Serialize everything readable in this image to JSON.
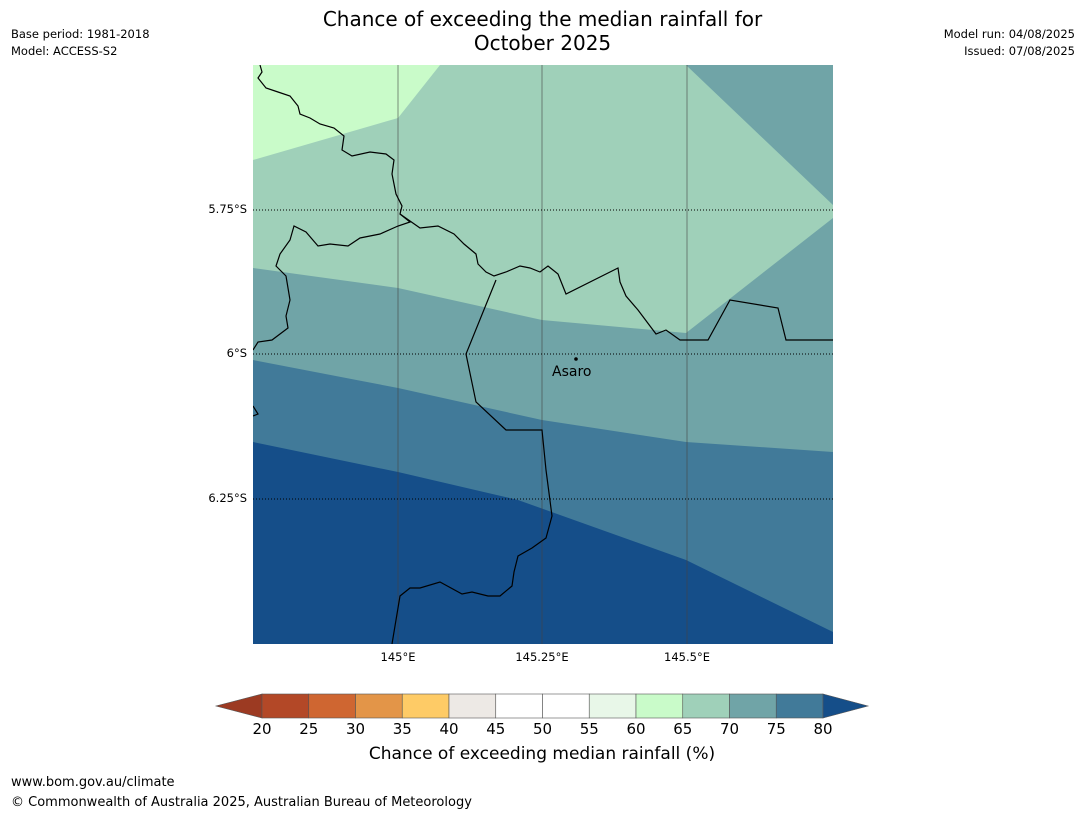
{
  "title": {
    "line1": "Chance of exceeding the median rainfall for",
    "line2": "October 2025"
  },
  "meta_left": {
    "base_period": "Base period: 1981-2018",
    "model": "Model: ACCESS-S2"
  },
  "meta_right": {
    "model_run": "Model run: 04/08/2025",
    "issued": "Issued: 07/08/2025"
  },
  "map": {
    "latitude_labels": [
      "5.75°S",
      "6°S",
      "6.25°S"
    ],
    "longitude_labels": [
      "145°E",
      "145.25°E",
      "145.5°E"
    ],
    "place": {
      "name": "Asaro"
    },
    "colors": {
      "c60_65": "#c9fbc9",
      "c65_70": "#9fd0b9",
      "c70_75": "#70a4a7",
      "c75_80": "#417a99",
      "c80_plus": "#154e89"
    }
  },
  "colorbar": {
    "ticks": [
      "20",
      "25",
      "30",
      "35",
      "40",
      "45",
      "50",
      "55",
      "60",
      "65",
      "70",
      "75",
      "80"
    ],
    "colors": [
      "#b34827",
      "#cf6631",
      "#e39548",
      "#fecb66",
      "#ede9e5",
      "#ffffff",
      "#ffffff",
      "#e8f7e8",
      "#c9fbc9",
      "#9fd0b9",
      "#70a4a7",
      "#417a99"
    ],
    "under_color": "#9c3a22",
    "over_color": "#154e89",
    "label": "Chance of exceeding median rainfall (%)"
  },
  "footer": {
    "url": "www.bom.gov.au/climate",
    "copyright": "© Commonwealth of Australia 2025, Australian Bureau of Meteorology"
  }
}
